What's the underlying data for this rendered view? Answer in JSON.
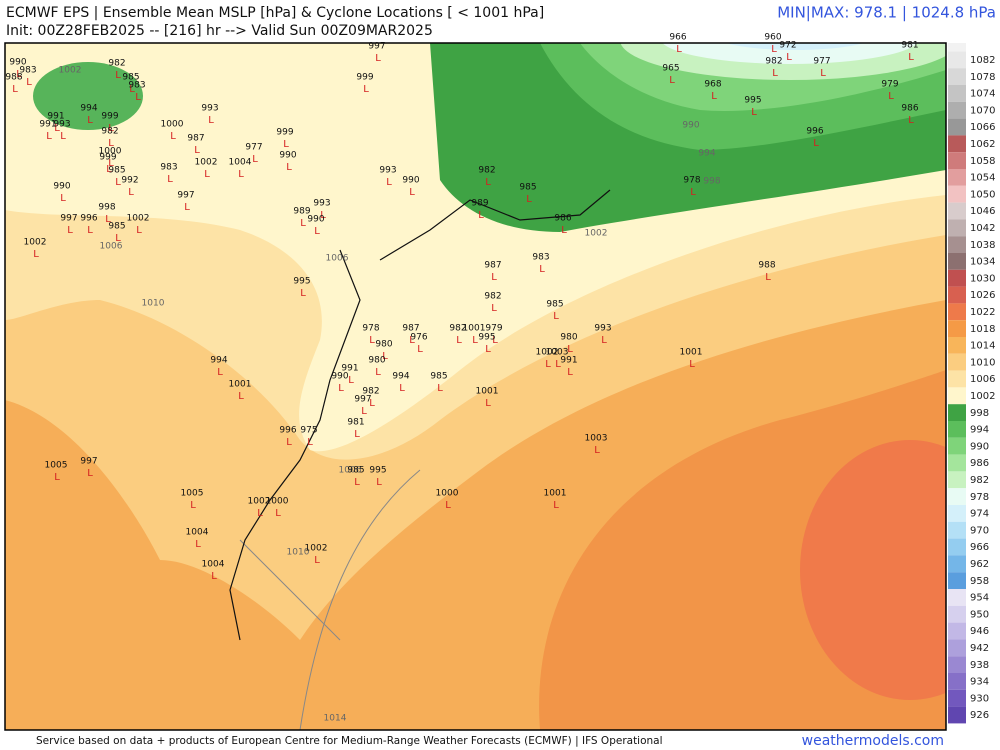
{
  "header": {
    "title": "ECMWF EPS | Ensemble Mean MSLP [hPa] & Cyclone Locations [ < 1001 hPa]",
    "init": "Init: 00Z28FEB2025 -- [216] hr --> Valid Sun 00Z09MAR2025",
    "minmax": "MIN|MAX: 978.1 | 1024.8 hPa"
  },
  "colorbar": {
    "labels": [
      1082,
      1078,
      1074,
      1070,
      1066,
      1062,
      1058,
      1054,
      1050,
      1046,
      1042,
      1038,
      1034,
      1030,
      1026,
      1022,
      1018,
      1014,
      1010,
      1006,
      1002,
      998,
      994,
      990,
      986,
      982,
      978,
      974,
      970,
      966,
      962,
      958,
      954,
      950,
      946,
      942,
      938,
      934,
      930,
      926
    ],
    "colors": [
      "#e8e8e8",
      "#d8d8d8",
      "#c4c4c4",
      "#aeaeae",
      "#989898",
      "#b85a5a",
      "#cf7b7b",
      "#e29e9e",
      "#f2c2c2",
      "#d8cccc",
      "#bfb0b0",
      "#a69090",
      "#8c7070",
      "#c05050",
      "#d86050",
      "#ee7a4a",
      "#f59a46",
      "#f8b55a",
      "#fbcd80",
      "#fde3a6",
      "#fff6cc",
      "#3fa344",
      "#5cbe5c",
      "#7fd47a",
      "#a4e59c",
      "#c8f2c0",
      "#e8fbf4",
      "#d4f0fa",
      "#b4e0f6",
      "#94cdf0",
      "#74b6e8",
      "#5a9ede",
      "#e8e4f4",
      "#d6d0ee",
      "#c2b8e6",
      "#ada0dc",
      "#9a88d2",
      "#8670c8",
      "#7258be",
      "#6046b0"
    ]
  },
  "contour_labels": [
    1002,
    1006,
    1010,
    1006,
    1002,
    990,
    994,
    998,
    1014,
    1010,
    1006
  ],
  "cyclone_marker": "L",
  "cyclones": [
    990,
    988,
    983,
    982,
    985,
    983,
    994,
    999,
    991,
    993,
    991,
    982,
    1000,
    999,
    985,
    990,
    992,
    998,
    997,
    996,
    985,
    1002,
    1002,
    1000,
    987,
    993,
    983,
    1002,
    997,
    1004,
    977,
    999,
    990,
    999,
    997,
    993,
    990,
    989,
    993,
    990,
    995,
    982,
    985,
    989,
    986,
    987,
    983,
    982,
    985,
    978,
    987,
    976,
    980,
    982,
    1001,
    979,
    995,
    980,
    993,
    1002,
    1003,
    991,
    980,
    991,
    990,
    994,
    985,
    982,
    997,
    1001,
    981,
    996,
    975,
    1001,
    994,
    1005,
    997,
    985,
    995,
    1005,
    1000,
    1001,
    1002,
    1000,
    1004,
    1004,
    1002,
    1001,
    1003,
    988,
    966,
    960,
    972,
    982,
    977,
    981,
    965,
    968,
    995,
    979,
    986,
    996,
    978
  ],
  "footer": {
    "credit": "Service based on data + products of European Centre for Medium-Range Weather Forecasts (ECMWF) | IFS Operational",
    "site": "weathermodels.com"
  }
}
